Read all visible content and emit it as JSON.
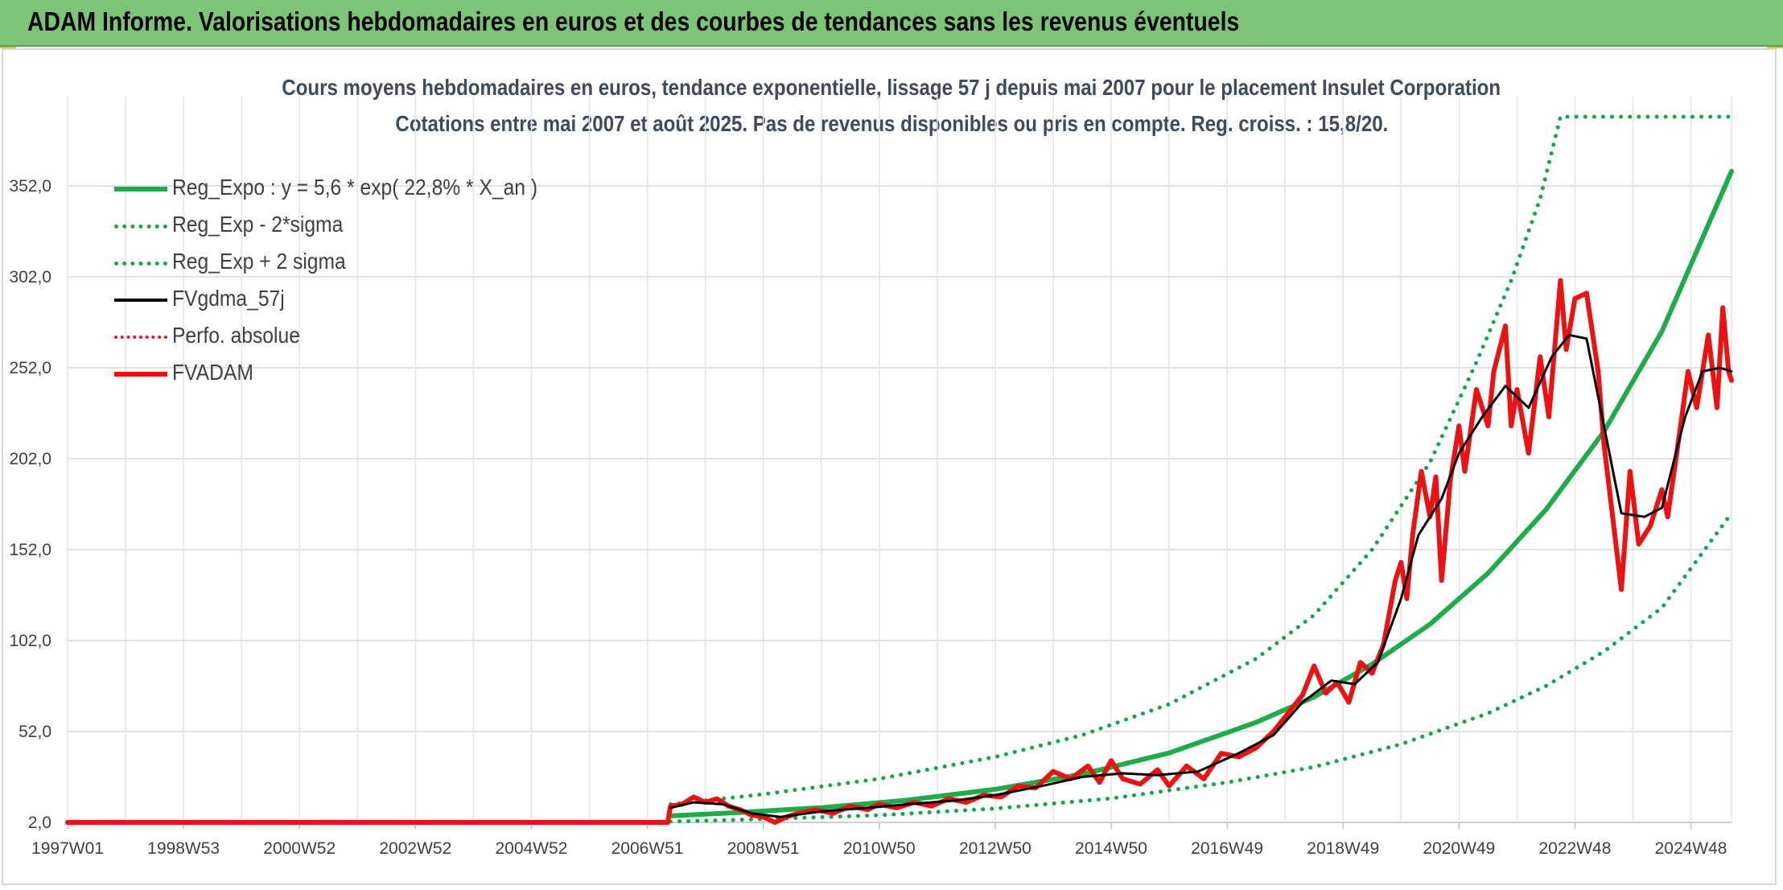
{
  "header": {
    "title": "ADAM Informe. Valorisations hebdomadaires en euros et des courbes de tendances sans les revenus éventuels"
  },
  "colors": {
    "trend_green": "#1eac4a",
    "dotted_green": "#12a84a",
    "smooth_black": "#000000",
    "price_red": "#ee1111",
    "grid": "#d9d9d9",
    "banner": "#7cc576"
  },
  "chart_data": {
    "type": "line",
    "title": "Cours moyens hebdomadaires en euros, tendance exponentielle, lissage 57 j depuis mai 2007 pour le placement Insulet Corporation",
    "subtitle": "Cotations entre mai 2007 et août 2025. Pas de revenus disponibles ou pris en compte. Reg. croiss. : 15,8/20.",
    "xlabel": "",
    "ylabel": "",
    "x_ticks": [
      "1997W01",
      "1998W53",
      "2000W52",
      "2002W52",
      "2004W52",
      "2006W51",
      "2008W51",
      "2010W50",
      "2012W50",
      "2014W50",
      "2016W49",
      "2018W49",
      "2020W49",
      "2022W48",
      "2024W48"
    ],
    "x_range": [
      1997.0,
      2025.7
    ],
    "y_ticks": [
      "2,0",
      "52,0",
      "102,0",
      "152,0",
      "202,0",
      "252,0",
      "302,0",
      "352,0"
    ],
    "ylim": [
      2,
      390
    ],
    "grid": true,
    "legend_position": "top-left",
    "series": [
      {
        "name": "Reg_Expo : y = 5,6 * exp( 22,8% *  X_an )",
        "style": "solid-thick",
        "color": "#1eac4a",
        "points": [
          [
            2007.4,
            5.6
          ],
          [
            2008.5,
            7.3
          ],
          [
            2010.0,
            10.1
          ],
          [
            2011.5,
            14.3
          ],
          [
            2013.0,
            20.2
          ],
          [
            2014.5,
            28.5
          ],
          [
            2016.0,
            40.2
          ],
          [
            2017.5,
            57.0
          ],
          [
            2018.5,
            71.0
          ],
          [
            2019.5,
            89.0
          ],
          [
            2020.5,
            111
          ],
          [
            2021.5,
            139
          ],
          [
            2022.5,
            174
          ],
          [
            2023.5,
            217
          ],
          [
            2024.5,
            272
          ],
          [
            2025.7,
            360
          ]
        ]
      },
      {
        "name": "Reg_Exp - 2*sigma",
        "style": "dotted",
        "color": "#12a84a",
        "points": [
          [
            2007.4,
            2.5
          ],
          [
            2009.0,
            3.8
          ],
          [
            2011.0,
            6.0
          ],
          [
            2013.0,
            9.6
          ],
          [
            2015.0,
            15.2
          ],
          [
            2017.0,
            24.0
          ],
          [
            2018.5,
            32.5
          ],
          [
            2020.0,
            45.0
          ],
          [
            2021.5,
            62.0
          ],
          [
            2022.5,
            77.0
          ],
          [
            2023.5,
            96.0
          ],
          [
            2024.5,
            120
          ],
          [
            2025.7,
            172
          ]
        ]
      },
      {
        "name": "Reg_Exp + 2 sigma",
        "style": "dotted",
        "color": "#12a84a",
        "points": [
          [
            2007.4,
            12.0
          ],
          [
            2009.0,
            17.5
          ],
          [
            2011.0,
            26.0
          ],
          [
            2013.0,
            38.0
          ],
          [
            2014.5,
            50.0
          ],
          [
            2016.0,
            67.0
          ],
          [
            2017.5,
            92.0
          ],
          [
            2018.5,
            116
          ],
          [
            2019.5,
            152
          ],
          [
            2020.5,
            200
          ],
          [
            2021.3,
            255
          ],
          [
            2021.9,
            300
          ],
          [
            2022.4,
            345
          ],
          [
            2022.75,
            390
          ],
          [
            2025.7,
            390
          ]
        ]
      },
      {
        "name": "FVgdma_57j",
        "style": "solid",
        "color": "#000000",
        "points": [
          [
            2007.4,
            10
          ],
          [
            2007.8,
            13
          ],
          [
            2008.3,
            12
          ],
          [
            2008.8,
            7
          ],
          [
            2009.3,
            5
          ],
          [
            2010.0,
            8
          ],
          [
            2010.8,
            10
          ],
          [
            2011.5,
            12
          ],
          [
            2012.3,
            14
          ],
          [
            2013.0,
            17
          ],
          [
            2013.8,
            22
          ],
          [
            2014.5,
            27
          ],
          [
            2015.2,
            29
          ],
          [
            2015.8,
            28
          ],
          [
            2016.5,
            30
          ],
          [
            2017.2,
            40
          ],
          [
            2017.8,
            50
          ],
          [
            2018.3,
            68
          ],
          [
            2018.8,
            80
          ],
          [
            2019.2,
            78
          ],
          [
            2019.6,
            90
          ],
          [
            2020.0,
            125
          ],
          [
            2020.3,
            160
          ],
          [
            2020.7,
            180
          ],
          [
            2021.0,
            205
          ],
          [
            2021.4,
            225
          ],
          [
            2021.8,
            242
          ],
          [
            2022.2,
            230
          ],
          [
            2022.6,
            258
          ],
          [
            2022.9,
            270
          ],
          [
            2023.2,
            268
          ],
          [
            2023.5,
            220
          ],
          [
            2023.8,
            172
          ],
          [
            2024.2,
            170
          ],
          [
            2024.5,
            175
          ],
          [
            2024.9,
            225
          ],
          [
            2025.2,
            250
          ],
          [
            2025.5,
            252
          ],
          [
            2025.7,
            250
          ]
        ]
      },
      {
        "name": "Perfo. absolue",
        "style": "dotted",
        "color": "#ee1111",
        "points": []
      },
      {
        "name": "FVADAM",
        "style": "solid-thick",
        "color": "#ee1111",
        "points": [
          [
            1997.0,
            2
          ],
          [
            2007.35,
            2
          ],
          [
            2007.4,
            11
          ],
          [
            2007.6,
            12
          ],
          [
            2007.8,
            16
          ],
          [
            2008.0,
            13
          ],
          [
            2008.2,
            15
          ],
          [
            2008.4,
            11
          ],
          [
            2008.6,
            9
          ],
          [
            2008.8,
            6
          ],
          [
            2009.0,
            5
          ],
          [
            2009.2,
            2
          ],
          [
            2009.4,
            5
          ],
          [
            2009.6,
            7
          ],
          [
            2009.9,
            9
          ],
          [
            2010.2,
            7
          ],
          [
            2010.5,
            11
          ],
          [
            2010.8,
            9
          ],
          [
            2011.0,
            12
          ],
          [
            2011.3,
            10
          ],
          [
            2011.6,
            13
          ],
          [
            2011.9,
            11
          ],
          [
            2012.2,
            15
          ],
          [
            2012.5,
            13
          ],
          [
            2012.8,
            17
          ],
          [
            2013.1,
            16
          ],
          [
            2013.4,
            22
          ],
          [
            2013.7,
            21
          ],
          [
            2014.0,
            30
          ],
          [
            2014.3,
            26
          ],
          [
            2014.6,
            33
          ],
          [
            2014.8,
            24
          ],
          [
            2015.0,
            36
          ],
          [
            2015.2,
            26
          ],
          [
            2015.5,
            23
          ],
          [
            2015.8,
            31
          ],
          [
            2016.0,
            22
          ],
          [
            2016.3,
            33
          ],
          [
            2016.6,
            26
          ],
          [
            2016.9,
            40
          ],
          [
            2017.2,
            38
          ],
          [
            2017.5,
            43
          ],
          [
            2017.8,
            52
          ],
          [
            2018.0,
            60
          ],
          [
            2018.3,
            72
          ],
          [
            2018.5,
            88
          ],
          [
            2018.7,
            73
          ],
          [
            2018.9,
            79
          ],
          [
            2019.1,
            68
          ],
          [
            2019.3,
            90
          ],
          [
            2019.5,
            84
          ],
          [
            2019.7,
            100
          ],
          [
            2019.9,
            135
          ],
          [
            2020.0,
            145
          ],
          [
            2020.1,
            125
          ],
          [
            2020.2,
            160
          ],
          [
            2020.35,
            195
          ],
          [
            2020.5,
            170
          ],
          [
            2020.6,
            192
          ],
          [
            2020.7,
            135
          ],
          [
            2020.85,
            190
          ],
          [
            2021.0,
            220
          ],
          [
            2021.1,
            195
          ],
          [
            2021.3,
            240
          ],
          [
            2021.5,
            220
          ],
          [
            2021.6,
            250
          ],
          [
            2021.8,
            275
          ],
          [
            2021.9,
            220
          ],
          [
            2022.0,
            240
          ],
          [
            2022.2,
            205
          ],
          [
            2022.4,
            258
          ],
          [
            2022.55,
            225
          ],
          [
            2022.75,
            300
          ],
          [
            2022.85,
            262
          ],
          [
            2023.0,
            290
          ],
          [
            2023.2,
            293
          ],
          [
            2023.4,
            250
          ],
          [
            2023.5,
            210
          ],
          [
            2023.65,
            170
          ],
          [
            2023.8,
            130
          ],
          [
            2023.95,
            195
          ],
          [
            2024.1,
            155
          ],
          [
            2024.3,
            165
          ],
          [
            2024.5,
            185
          ],
          [
            2024.6,
            170
          ],
          [
            2024.8,
            215
          ],
          [
            2024.95,
            250
          ],
          [
            2025.1,
            230
          ],
          [
            2025.3,
            270
          ],
          [
            2025.45,
            230
          ],
          [
            2025.55,
            285
          ],
          [
            2025.65,
            250
          ],
          [
            2025.7,
            245
          ]
        ]
      }
    ]
  }
}
